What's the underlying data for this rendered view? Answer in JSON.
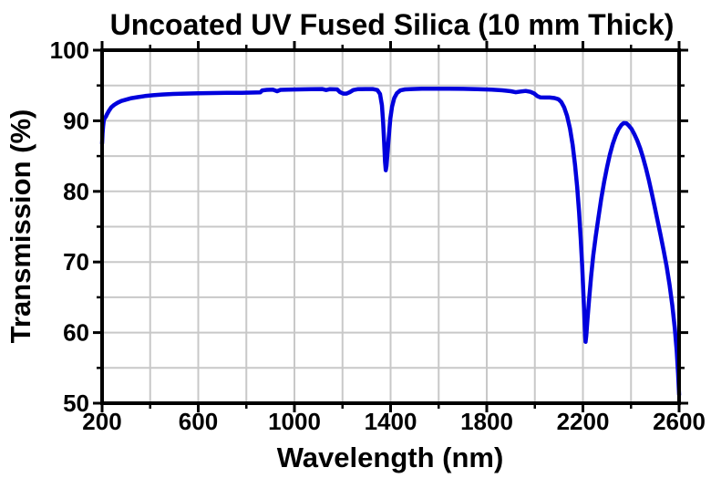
{
  "chart_data": {
    "type": "line",
    "title": "Uncoated UV Fused Silica (10 mm Thick)",
    "xlabel": "Wavelength (nm)",
    "ylabel": "Transmission (%)",
    "xlim": [
      200,
      2600
    ],
    "ylim": [
      50,
      100
    ],
    "x_major_ticks": [
      200,
      600,
      1000,
      1400,
      1800,
      2200,
      2600
    ],
    "x_minor_ticks": [
      400,
      800,
      1200,
      1600,
      2000,
      2400
    ],
    "y_major_ticks": [
      50,
      60,
      70,
      80,
      90,
      100
    ],
    "y_minor_ticks": [
      55,
      65,
      75,
      85,
      95
    ],
    "grid": true,
    "legend": "none",
    "line_color": "#0000DD",
    "grid_color": "#C8C8C8",
    "frame_color": "#000000",
    "series": [
      {
        "name": "Transmission",
        "points": [
          [
            200,
            86.8
          ],
          [
            202,
            88.2
          ],
          [
            204,
            89.2
          ],
          [
            207,
            90.0
          ],
          [
            211,
            90.4
          ],
          [
            215,
            90.55
          ],
          [
            220,
            90.9
          ],
          [
            228,
            91.4
          ],
          [
            238,
            91.9
          ],
          [
            250,
            92.25
          ],
          [
            264,
            92.55
          ],
          [
            280,
            92.8
          ],
          [
            300,
            93.0
          ],
          [
            322,
            93.2
          ],
          [
            348,
            93.35
          ],
          [
            378,
            93.5
          ],
          [
            412,
            93.62
          ],
          [
            450,
            93.72
          ],
          [
            495,
            93.8
          ],
          [
            545,
            93.85
          ],
          [
            600,
            93.9
          ],
          [
            660,
            93.93
          ],
          [
            720,
            93.95
          ],
          [
            780,
            93.97
          ],
          [
            840,
            94.0
          ],
          [
            858,
            94.02
          ],
          [
            866,
            94.3
          ],
          [
            885,
            94.38
          ],
          [
            910,
            94.4
          ],
          [
            928,
            94.18
          ],
          [
            942,
            94.38
          ],
          [
            975,
            94.42
          ],
          [
            1020,
            94.45
          ],
          [
            1070,
            94.48
          ],
          [
            1115,
            94.5
          ],
          [
            1132,
            94.35
          ],
          [
            1148,
            94.48
          ],
          [
            1178,
            94.45
          ],
          [
            1190,
            94.05
          ],
          [
            1203,
            93.85
          ],
          [
            1217,
            93.85
          ],
          [
            1230,
            94.05
          ],
          [
            1245,
            94.35
          ],
          [
            1265,
            94.48
          ],
          [
            1295,
            94.5
          ],
          [
            1325,
            94.5
          ],
          [
            1345,
            94.35
          ],
          [
            1356,
            93.8
          ],
          [
            1364,
            92.2
          ],
          [
            1369,
            89.8
          ],
          [
            1373,
            87.0
          ],
          [
            1377,
            84.2
          ],
          [
            1380,
            83.0
          ],
          [
            1383,
            83.6
          ],
          [
            1388,
            85.8
          ],
          [
            1393,
            88.0
          ],
          [
            1399,
            90.3
          ],
          [
            1406,
            92.0
          ],
          [
            1415,
            93.2
          ],
          [
            1426,
            93.9
          ],
          [
            1440,
            94.3
          ],
          [
            1460,
            94.45
          ],
          [
            1490,
            94.5
          ],
          [
            1530,
            94.53
          ],
          [
            1580,
            94.55
          ],
          [
            1640,
            94.55
          ],
          [
            1700,
            94.52
          ],
          [
            1760,
            94.48
          ],
          [
            1820,
            94.4
          ],
          [
            1865,
            94.32
          ],
          [
            1900,
            94.18
          ],
          [
            1920,
            94.05
          ],
          [
            1942,
            94.15
          ],
          [
            1962,
            94.22
          ],
          [
            1982,
            94.1
          ],
          [
            1998,
            93.85
          ],
          [
            2010,
            93.5
          ],
          [
            2022,
            93.32
          ],
          [
            2042,
            93.3
          ],
          [
            2062,
            93.3
          ],
          [
            2082,
            93.22
          ],
          [
            2098,
            93.05
          ],
          [
            2110,
            92.65
          ],
          [
            2122,
            91.9
          ],
          [
            2134,
            90.7
          ],
          [
            2146,
            88.9
          ],
          [
            2157,
            86.6
          ],
          [
            2167,
            83.8
          ],
          [
            2176,
            80.6
          ],
          [
            2184,
            77.0
          ],
          [
            2191,
            73.2
          ],
          [
            2197,
            69.4
          ],
          [
            2202,
            65.6
          ],
          [
            2206,
            62.2
          ],
          [
            2209,
            59.6
          ],
          [
            2211,
            58.7
          ],
          [
            2214,
            59.6
          ],
          [
            2219,
            61.9
          ],
          [
            2226,
            64.9
          ],
          [
            2234,
            68.0
          ],
          [
            2243,
            70.9
          ],
          [
            2253,
            73.6
          ],
          [
            2264,
            76.2
          ],
          [
            2276,
            78.9
          ],
          [
            2288,
            81.3
          ],
          [
            2300,
            83.4
          ],
          [
            2312,
            85.2
          ],
          [
            2324,
            86.7
          ],
          [
            2336,
            87.9
          ],
          [
            2348,
            88.8
          ],
          [
            2360,
            89.4
          ],
          [
            2370,
            89.68
          ],
          [
            2380,
            89.65
          ],
          [
            2390,
            89.35
          ],
          [
            2402,
            88.85
          ],
          [
            2414,
            88.1
          ],
          [
            2426,
            87.2
          ],
          [
            2438,
            86.1
          ],
          [
            2450,
            84.8
          ],
          [
            2462,
            83.3
          ],
          [
            2474,
            81.6
          ],
          [
            2486,
            79.8
          ],
          [
            2498,
            77.9
          ],
          [
            2510,
            75.9
          ],
          [
            2523,
            73.8
          ],
          [
            2536,
            71.6
          ],
          [
            2548,
            69.4
          ],
          [
            2560,
            66.8
          ],
          [
            2572,
            63.8
          ],
          [
            2582,
            60.6
          ],
          [
            2590,
            57.4
          ],
          [
            2596,
            54.2
          ],
          [
            2600,
            51.2
          ]
        ]
      }
    ]
  }
}
